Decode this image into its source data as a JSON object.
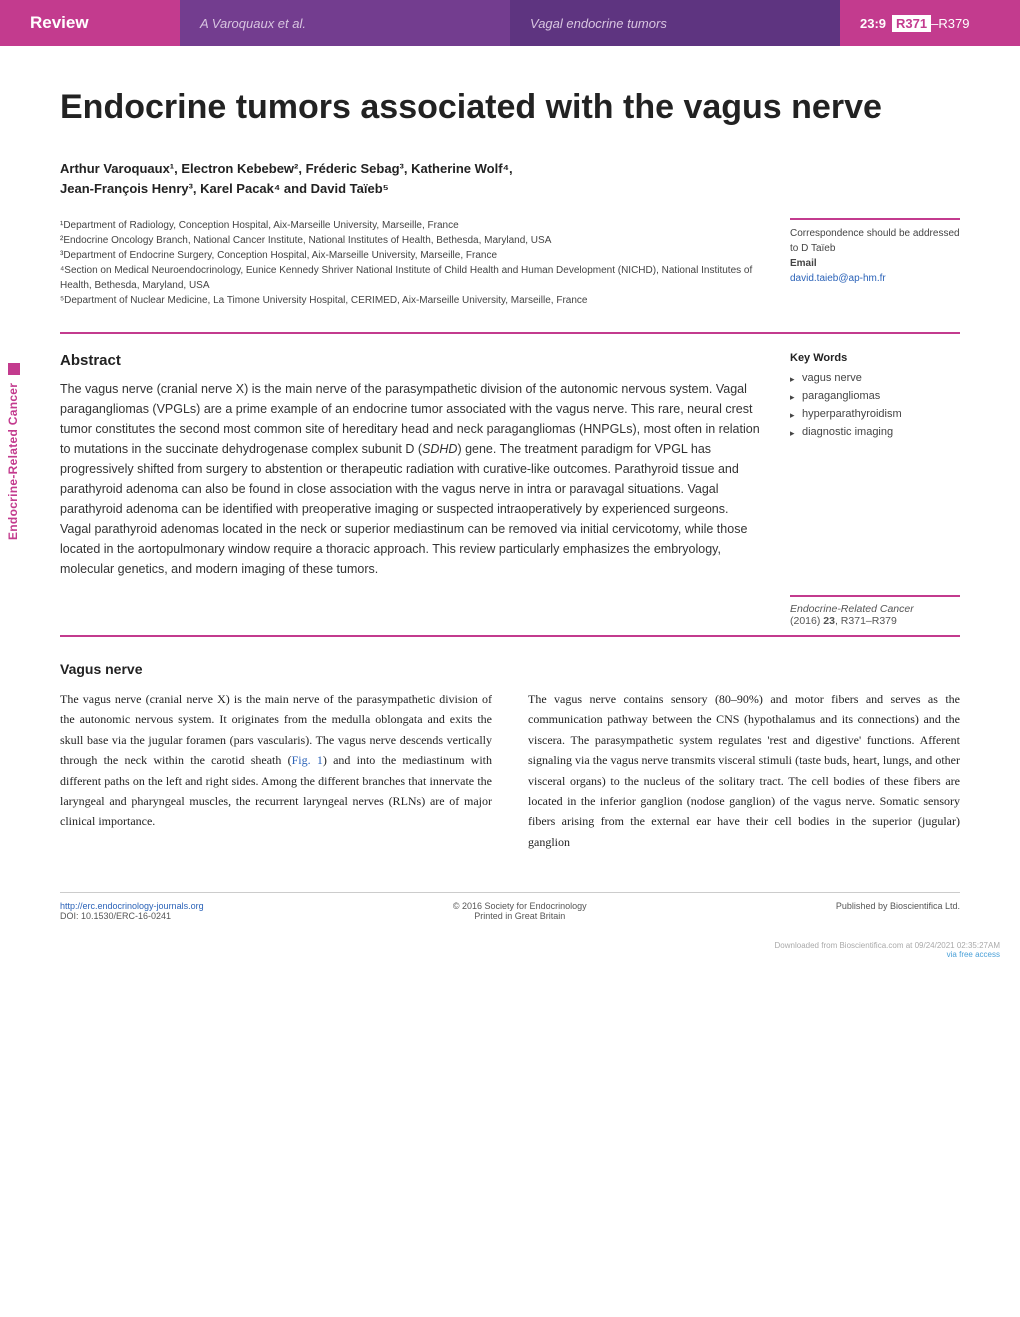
{
  "header": {
    "section_label": "Review",
    "authors_short": "A Varoquaux et al.",
    "running_title": "Vagal endocrine tumors",
    "volume_issue": "23:9",
    "page_range_bold": "R371",
    "page_range_rest": "–R379"
  },
  "side_label": "Endocrine-Related Cancer",
  "title": "Endocrine tumors associated with the vagus nerve",
  "authors_line1": "Arthur Varoquaux¹, Electron Kebebew², Fréderic Sebag³, Katherine Wolf⁴,",
  "authors_line2": "Jean-François Henry³, Karel Pacak⁴ and David Taïeb⁵",
  "affiliations": [
    "¹Department of Radiology, Conception Hospital, Aix-Marseille University, Marseille, France",
    "²Endocrine Oncology Branch, National Cancer Institute, National Institutes of Health, Bethesda, Maryland, USA",
    "³Department of Endocrine Surgery, Conception Hospital, Aix-Marseille University, Marseille, France",
    "⁴Section on Medical Neuroendocrinology, Eunice Kennedy Shriver National Institute of Child Health and Human Development (NICHD), National Institutes of Health, Bethesda, Maryland, USA",
    "⁵Department of Nuclear Medicine, La Timone University Hospital, CERIMED, Aix-Marseille University, Marseille, France"
  ],
  "correspondence": {
    "intro": "Correspondence should be addressed to D Taïeb",
    "email_label": "Email",
    "email": "david.taieb@ap-hm.fr"
  },
  "abstract": {
    "heading": "Abstract",
    "text_before_gene": "The vagus nerve (cranial nerve X) is the main nerve of the parasympathetic division of the autonomic nervous system. Vagal paragangliomas (VPGLs) are a prime example of an endocrine tumor associated with the vagus nerve. This rare, neural crest tumor constitutes the second most common site of hereditary head and neck paragangliomas (HNPGLs), most often in relation to mutations in the succinate dehydrogenase complex subunit D (",
    "gene": "SDHD",
    "text_after_gene": ") gene. The treatment paradigm for VPGL has progressively shifted from surgery to abstention or therapeutic radiation with curative-like outcomes. Parathyroid tissue and parathyroid adenoma can also be found in close association with the vagus nerve in intra or paravagal situations. Vagal parathyroid adenoma can be identified with preoperative imaging or suspected intraoperatively by experienced surgeons. Vagal parathyroid adenomas located in the neck or superior mediastinum can be removed via initial cervicotomy, while those located in the aortopulmonary window require a thoracic approach. This review particularly emphasizes the embryology, molecular genetics, and modern imaging of these tumors."
  },
  "keywords": {
    "heading": "Key Words",
    "items": [
      "vagus nerve",
      "paragangliomas",
      "hyperparathyroidism",
      "diagnostic imaging"
    ]
  },
  "citation": {
    "journal": "Endocrine-Related Cancer",
    "year_vol_pages": "(2016) 23, R371–R379",
    "vol_bold": "23"
  },
  "section1": {
    "heading": "Vagus nerve",
    "col1_before_fig": "The vagus nerve (cranial nerve X) is the main nerve of the parasympathetic division of the autonomic nervous system. It originates from the medulla oblongata and exits the skull base via the jugular foramen (pars vascularis). The vagus nerve descends vertically through the neck within the carotid sheath (",
    "fig_ref": "Fig. 1",
    "col1_after_fig": ") and into the mediastinum with different paths on the left and right sides. Among the different branches that innervate the laryngeal and pharyngeal muscles, the recurrent laryngeal nerves (RLNs) are of major clinical importance.",
    "col2": "The vagus nerve contains sensory (80–90%) and motor fibers and serves as the communication pathway between the CNS (hypothalamus and its connections) and the viscera. The parasympathetic system regulates 'rest and digestive' functions. Afferent signaling via the vagus nerve transmits visceral stimuli (taste buds, heart, lungs, and other visceral organs) to the nucleus of the solitary tract. The cell bodies of these fibers are located in the inferior ganglion (nodose ganglion) of the vagus nerve. Somatic sensory fibers arising from the external ear have their cell bodies in the superior (jugular) ganglion"
  },
  "footer": {
    "url": "http://erc.endocrinology-journals.org",
    "doi": "DOI: 10.1530/ERC-16-0241",
    "copyright": "© 2016 Society for Endocrinology",
    "printed": "Printed in Great Britain",
    "published": "Published by Bioscientifica Ltd."
  },
  "download": {
    "text_prefix": "Downloaded from Bioscientifica.com at 09/24/2021 02:35:27AM",
    "via": "via free access"
  },
  "colors": {
    "magenta": "#c33b8e",
    "purple_mid": "#733d8f",
    "purple_dark": "#5e3480",
    "link_blue": "#2a62b8",
    "dl_blue": "#4aa0d8"
  }
}
